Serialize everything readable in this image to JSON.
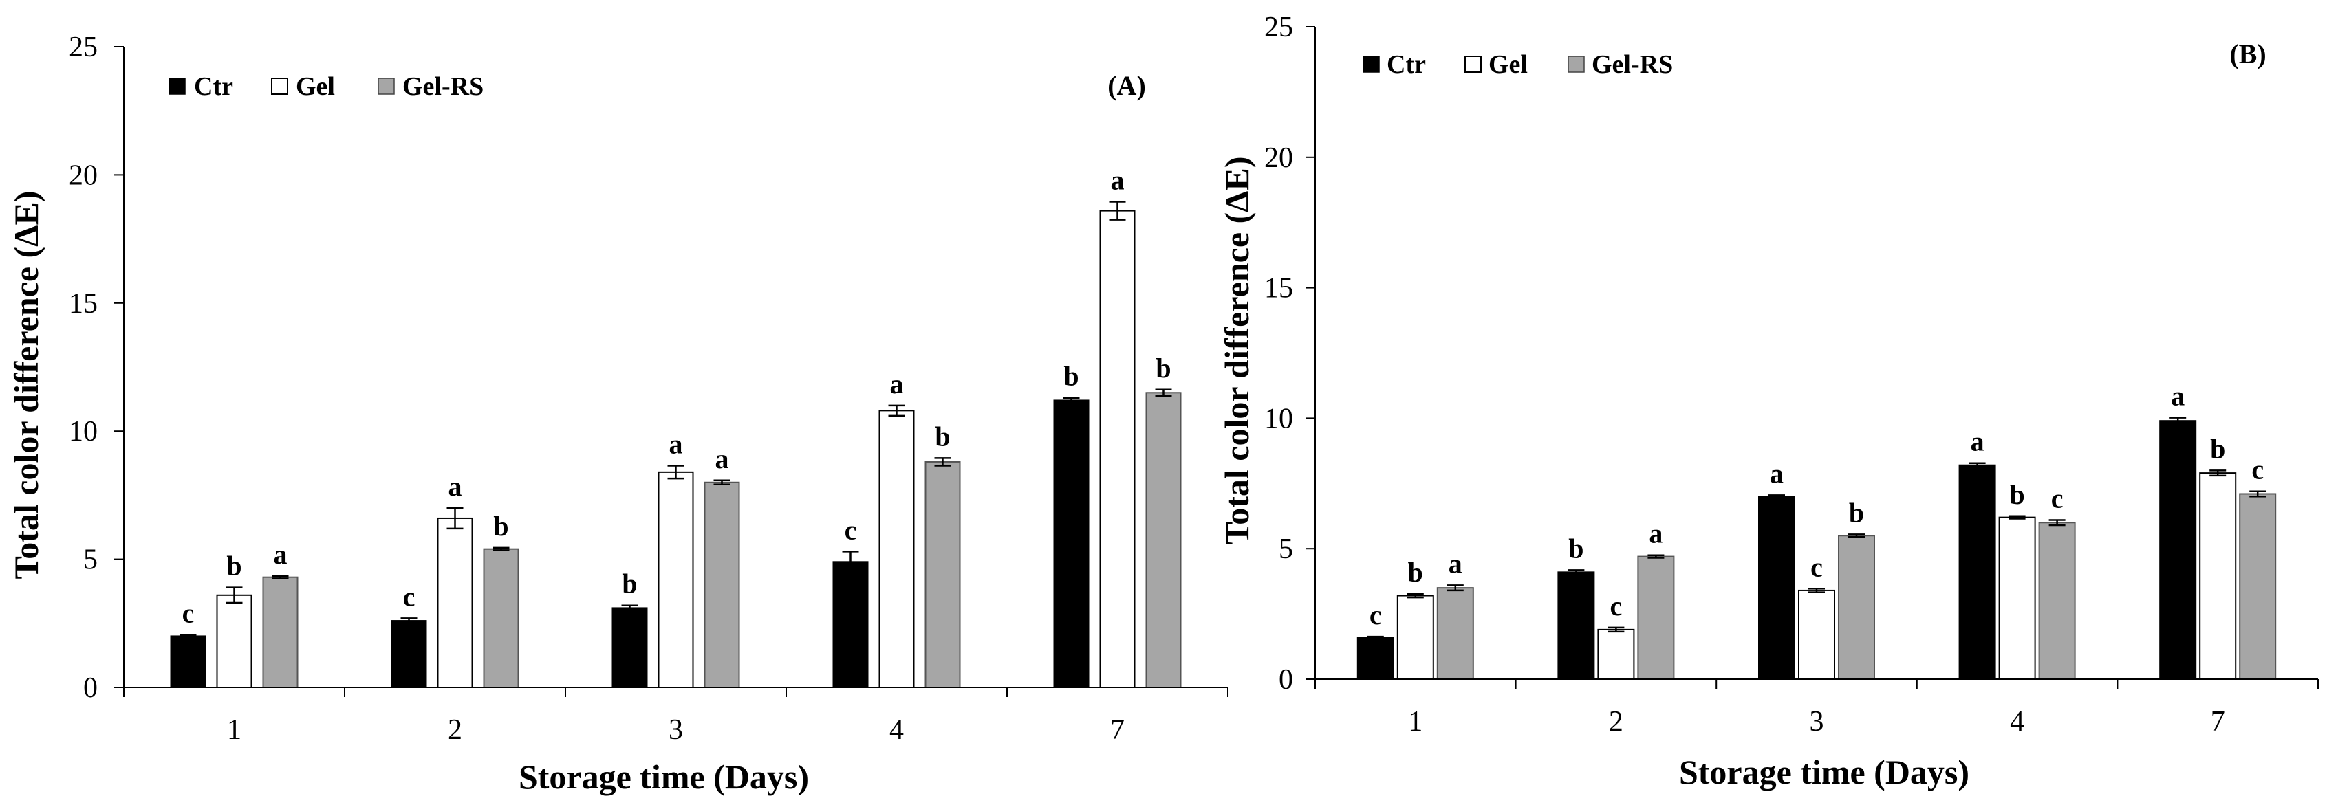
{
  "colors": {
    "Ctr": "#000000",
    "Gel": "#ffffff",
    "Gel-RS": "#a6a6a6"
  },
  "chart_data": [
    {
      "type": "bar",
      "panel_label": "(A)",
      "categories": [
        "1",
        "2",
        "3",
        "4",
        "7"
      ],
      "xlabel": "Storage time (Days)",
      "ylabel": "Total color difference (ΔE)",
      "ylim": [
        0,
        25
      ],
      "yticks": [
        "0",
        "5",
        "10",
        "15",
        "20",
        "25"
      ],
      "legend_position": "top-left",
      "series": [
        {
          "name": "Ctr",
          "values": [
            2.0,
            2.6,
            3.1,
            4.9,
            11.2
          ],
          "errors": [
            0.05,
            0.1,
            0.1,
            0.4,
            0.1
          ],
          "letters": [
            "c",
            "c",
            "b",
            "c",
            "b"
          ]
        },
        {
          "name": "Gel",
          "values": [
            3.6,
            6.6,
            8.4,
            10.8,
            18.6
          ],
          "errors": [
            0.3,
            0.4,
            0.25,
            0.2,
            0.35
          ],
          "letters": [
            "b",
            "a",
            "a",
            "a",
            "a"
          ]
        },
        {
          "name": "Gel-RS",
          "values": [
            4.3,
            5.4,
            8.0,
            8.8,
            11.5
          ],
          "errors": [
            0.05,
            0.05,
            0.08,
            0.15,
            0.12
          ],
          "letters": [
            "a",
            "b",
            "a",
            "b",
            "b"
          ]
        }
      ]
    },
    {
      "type": "bar",
      "panel_label": "(B)",
      "categories": [
        "1",
        "2",
        "3",
        "4",
        "7"
      ],
      "xlabel": "Storage time (Days)",
      "ylabel": "Total color difference (ΔE)",
      "ylim": [
        0,
        25
      ],
      "yticks": [
        "0",
        "5",
        "10",
        "15",
        "20",
        "25"
      ],
      "legend_position": "top-left",
      "series": [
        {
          "name": "Ctr",
          "values": [
            1.6,
            4.1,
            7.0,
            8.2,
            9.9
          ],
          "errors": [
            0.03,
            0.08,
            0.05,
            0.08,
            0.12
          ],
          "letters": [
            "c",
            "b",
            "a",
            "a",
            "a"
          ]
        },
        {
          "name": "Gel",
          "values": [
            3.2,
            1.9,
            3.4,
            6.2,
            7.9
          ],
          "errors": [
            0.07,
            0.08,
            0.07,
            0.05,
            0.1
          ],
          "letters": [
            "b",
            "c",
            "c",
            "b",
            "b"
          ]
        },
        {
          "name": "Gel-RS",
          "values": [
            3.5,
            4.7,
            5.5,
            6.0,
            7.1
          ],
          "errors": [
            0.1,
            0.05,
            0.05,
            0.1,
            0.1
          ],
          "letters": [
            "a",
            "a",
            "b",
            "c",
            "c"
          ]
        }
      ]
    }
  ]
}
